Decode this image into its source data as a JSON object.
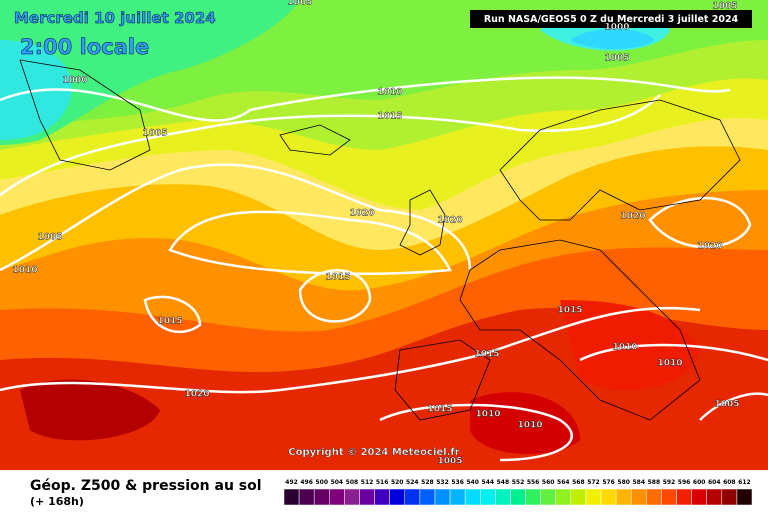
{
  "header": {
    "date": "Mercredi 10 juillet 2024",
    "time": "2:00 locale",
    "run": "Run NASA/GEOS5 0 Z du Mercredi 3 juillet 2024"
  },
  "copyright": "Copyright © 2024 Meteociel.fr",
  "isobar_labels": [
    1005,
    1005,
    1000,
    1005,
    1000,
    1005,
    1010,
    1015,
    1020,
    1020,
    1020,
    1020,
    1005,
    1010,
    1015,
    1015,
    1015,
    1015,
    1010,
    1010,
    1020,
    1015,
    1010,
    1005,
    1010,
    1005
  ],
  "footer": {
    "title": "Géop. Z500 & pression au sol",
    "subtitle": "(+ 168h)"
  },
  "scale": {
    "values": [
      492,
      496,
      500,
      504,
      508,
      512,
      516,
      520,
      524,
      528,
      532,
      536,
      540,
      544,
      548,
      552,
      556,
      560,
      564,
      568,
      572,
      576,
      580,
      584,
      588,
      592,
      596,
      600,
      604,
      608,
      612
    ],
    "colors": [
      "#2a0030",
      "#4b0050",
      "#640064",
      "#80007a",
      "#8a2090",
      "#6a00a0",
      "#4000c0",
      "#0000dc",
      "#0030f0",
      "#0060ff",
      "#0090ff",
      "#00b4ff",
      "#00dcff",
      "#00f0f0",
      "#00f0c0",
      "#00f090",
      "#30f060",
      "#60f040",
      "#90f020",
      "#c0f000",
      "#f0f000",
      "#ffd800",
      "#ffb400",
      "#ff9000",
      "#ff6c00",
      "#ff4800",
      "#f02000",
      "#d80000",
      "#b40000",
      "#900000",
      "#200000"
    ]
  }
}
